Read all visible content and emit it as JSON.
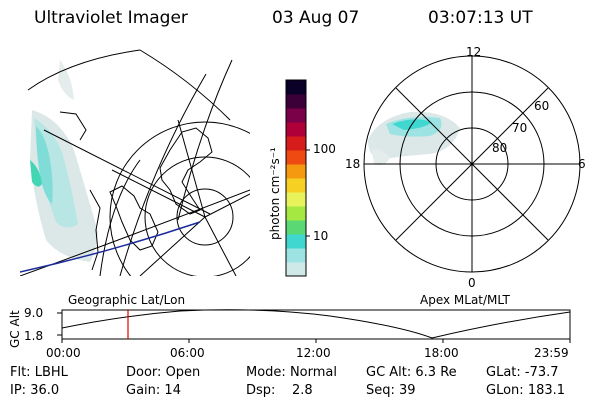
{
  "header": {
    "title": "Ultraviolet Imager",
    "date": "03 Aug 07",
    "time": "03:07:13 UT"
  },
  "colorbar": {
    "unit_label": "photon cm⁻²s⁻¹",
    "ticks": [
      "100",
      "10"
    ],
    "colors": [
      "#cfe9e9",
      "#9ee3e3",
      "#3fd7d0",
      "#5ad874",
      "#a6e842",
      "#e8f25b",
      "#f7d024",
      "#f59a10",
      "#ee4a12",
      "#d71c1c",
      "#b0003a",
      "#7a0048",
      "#3b0038",
      "#0b0028"
    ]
  },
  "polar_plot": {
    "mlt_labels": [
      "12",
      "18",
      "6",
      "0"
    ],
    "lat_labels": [
      "60",
      "70",
      "80"
    ],
    "caption": "Apex MLat/MLT"
  },
  "map_plot": {
    "caption": "Geographic Lat/Lon"
  },
  "alt_plot": {
    "axis_label": "GC Alt",
    "y_ticks": [
      "9.0",
      "1.8"
    ],
    "x_ticks": [
      "00:00",
      "06:00",
      "12:00",
      "18:00",
      "23:59"
    ],
    "marker_time": "03:07"
  },
  "footer": {
    "row1": [
      {
        "label": "Flt:",
        "value": "LBHL"
      },
      {
        "label": "Door:",
        "value": "Open"
      },
      {
        "label": "Mode:",
        "value": "Normal"
      },
      {
        "label": "GC Alt:",
        "value": "6.3 Re"
      },
      {
        "label": "GLat:",
        "value": "-73.7"
      }
    ],
    "row2": [
      {
        "label": "IP:",
        "value": "36.0"
      },
      {
        "label": "Gain:",
        "value": "14"
      },
      {
        "label": "Dsp:",
        "value": "2.8"
      },
      {
        "label": "Seq:",
        "value": "39"
      },
      {
        "label": "GLon:",
        "value": "183.1"
      }
    ]
  }
}
